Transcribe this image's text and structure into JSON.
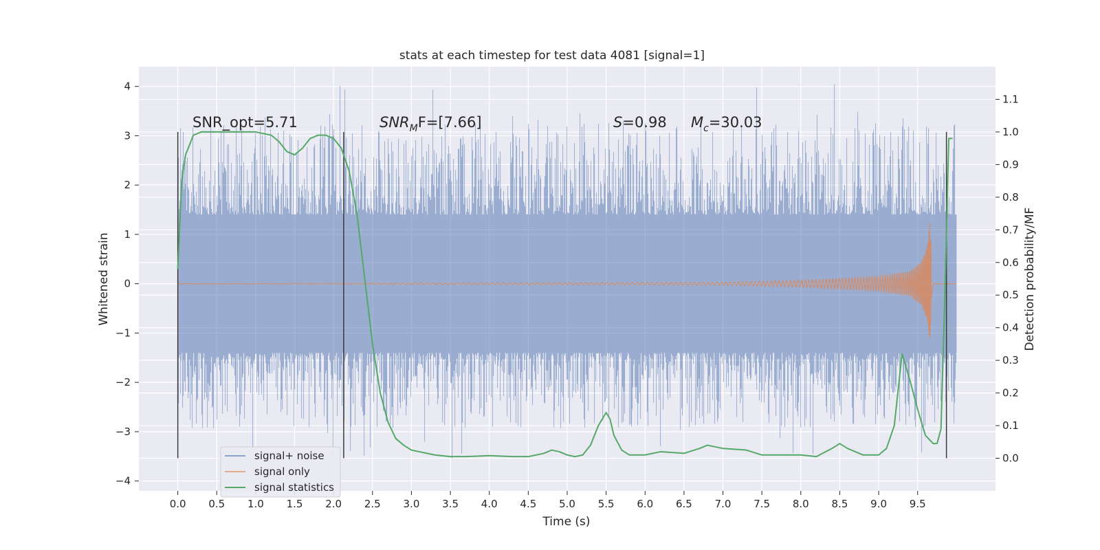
{
  "chart_data": {
    "type": "line",
    "title": "stats at each timestep for test data 4081 [signal=1]",
    "xlabel": "Time (s)",
    "ylabel": "Whitened strain",
    "y2label": "Detection probability/MF",
    "xlim": [
      -0.5,
      10.5
    ],
    "ylim": [
      -4.2,
      4.4
    ],
    "y2lim": [
      -0.1,
      1.2
    ],
    "x_ticks": [
      "0.0",
      "0.5",
      "1.0",
      "1.5",
      "2.0",
      "2.5",
      "3.0",
      "3.5",
      "4.0",
      "4.5",
      "5.0",
      "5.5",
      "6.0",
      "6.5",
      "7.0",
      "7.5",
      "8.0",
      "8.5",
      "9.0",
      "9.5"
    ],
    "y_ticks": [
      "4",
      "3",
      "2",
      "1",
      "0",
      "−1",
      "−2",
      "−3",
      "−4"
    ],
    "y2_ticks": [
      "1.1",
      "1.0",
      "0.9",
      "0.8",
      "0.7",
      "0.6",
      "0.5",
      "0.4",
      "0.3",
      "0.2",
      "0.1",
      "0.0"
    ],
    "grid": true,
    "legend_position": "lower-left",
    "annotations": {
      "snr_opt": "SNR_opt=5.71",
      "snr_mf_base": "SNR",
      "snr_mf_sub": "M",
      "snr_mf_rest": "F=[7.66]",
      "s_sym": "S",
      "s_val": "=0.98",
      "mc_sym": "M",
      "mc_sub": "c",
      "mc_val": "=30.03"
    },
    "markers_x": [
      0.0,
      2.13,
      9.87
    ],
    "series": [
      {
        "name": "signal+ noise",
        "color": "#4c72b0",
        "axis": "left",
        "x_range": [
          0.0,
          10.0
        ],
        "core_range": [
          -1.4,
          1.4
        ],
        "spike_envelope": [
          -3.6,
          4.05
        ]
      },
      {
        "name": "signal only",
        "color": "#dd8452",
        "axis": "left",
        "x": [
          0.0,
          7.0,
          8.0,
          9.0,
          9.4,
          9.55,
          9.63,
          9.66,
          9.7,
          10.0
        ],
        "amplitude": [
          0.0,
          0.03,
          0.07,
          0.15,
          0.25,
          0.45,
          0.8,
          1.3,
          0.0,
          0.0
        ]
      },
      {
        "name": "signal statistics",
        "color": "#55a868",
        "axis": "right",
        "x": [
          0.0,
          0.05,
          0.1,
          0.2,
          0.3,
          0.5,
          0.8,
          1.0,
          1.2,
          1.3,
          1.4,
          1.5,
          1.6,
          1.7,
          1.8,
          1.9,
          2.0,
          2.1,
          2.2,
          2.3,
          2.4,
          2.5,
          2.6,
          2.7,
          2.8,
          2.9,
          3.0,
          3.3,
          3.5,
          3.7,
          4.0,
          4.3,
          4.5,
          4.7,
          4.8,
          4.9,
          5.0,
          5.1,
          5.2,
          5.3,
          5.4,
          5.5,
          5.55,
          5.6,
          5.7,
          5.8,
          5.9,
          6.0,
          6.2,
          6.5,
          6.7,
          6.8,
          7.0,
          7.3,
          7.5,
          7.7,
          8.0,
          8.2,
          8.4,
          8.5,
          8.6,
          8.8,
          9.0,
          9.1,
          9.2,
          9.3,
          9.4,
          9.5,
          9.6,
          9.7,
          9.75,
          9.8,
          9.85,
          9.9,
          9.95
        ],
        "values": [
          0.58,
          0.85,
          0.93,
          0.99,
          1.0,
          1.0,
          1.0,
          1.0,
          0.99,
          0.97,
          0.94,
          0.93,
          0.95,
          0.98,
          0.99,
          0.99,
          0.98,
          0.95,
          0.88,
          0.75,
          0.55,
          0.35,
          0.2,
          0.11,
          0.06,
          0.04,
          0.025,
          0.01,
          0.005,
          0.005,
          0.008,
          0.005,
          0.005,
          0.015,
          0.025,
          0.02,
          0.01,
          0.005,
          0.01,
          0.04,
          0.1,
          0.14,
          0.12,
          0.07,
          0.025,
          0.01,
          0.01,
          0.01,
          0.02,
          0.015,
          0.03,
          0.04,
          0.03,
          0.025,
          0.01,
          0.01,
          0.01,
          0.005,
          0.03,
          0.045,
          0.03,
          0.01,
          0.01,
          0.03,
          0.1,
          0.32,
          0.24,
          0.15,
          0.07,
          0.045,
          0.045,
          0.09,
          0.5,
          0.98,
          0.98
        ]
      }
    ]
  }
}
